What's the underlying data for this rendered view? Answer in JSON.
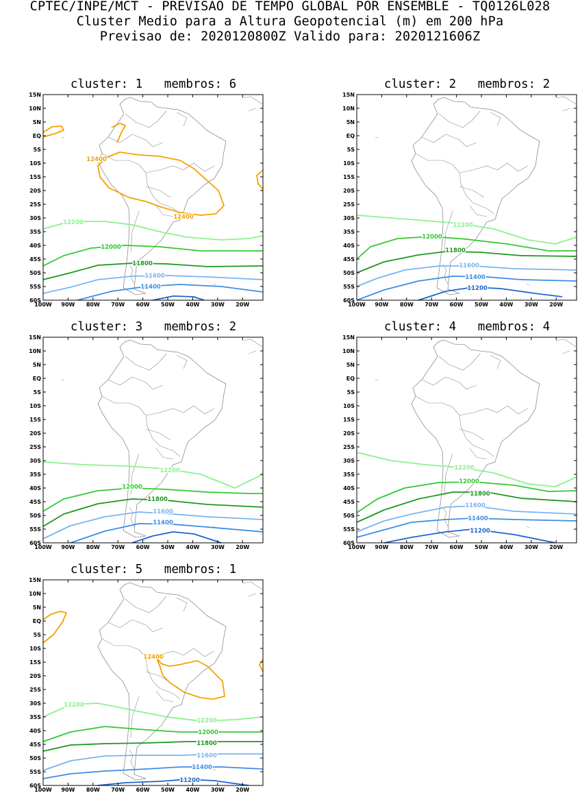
{
  "header": {
    "line1": "CPTEC/INPE/MCT - PREVISAO DE TEMPO GLOBAL POR ENSEMBLE - TQ0126L028",
    "line2": "Cluster Medio para a Altura Geopotencial (m) em 200 hPa",
    "line3": "Previsao de: 2020120800Z    Valido para: 2020121606Z"
  },
  "axes": {
    "lat_labels": [
      "15N",
      "10N",
      "5N",
      "EQ",
      "5S",
      "10S",
      "15S",
      "20S",
      "25S",
      "30S",
      "35S",
      "40S",
      "45S",
      "50S",
      "55S",
      "60S"
    ],
    "lon_labels": [
      "100W",
      "90W",
      "80W",
      "70W",
      "60W",
      "50W",
      "40W",
      "30W",
      "20W"
    ]
  },
  "colors": {
    "c12400": "#f5a000",
    "c12200": "#8cf08c",
    "c12000": "#32c832",
    "c11800": "#1e961e",
    "c11600": "#78b4f0",
    "c11400": "#3c8ce6",
    "c11200": "#1e64c8",
    "coast": "#8c8c8c"
  },
  "panels": [
    {
      "title": "cluster: 1   membros: 6",
      "contours": [
        {
          "value": 12400,
          "label": "12400",
          "label2": "12400"
        },
        {
          "value": 12200,
          "label": "12200"
        },
        {
          "value": 12000,
          "label": "12000"
        },
        {
          "value": 11800,
          "label": "11800"
        },
        {
          "value": 11600,
          "label": "11600"
        },
        {
          "value": 11400,
          "label": "11400"
        }
      ]
    },
    {
      "title": "cluster: 2   membros: 2",
      "contours": [
        {
          "value": 12200,
          "label": "12200"
        },
        {
          "value": 12000,
          "label": "12000"
        },
        {
          "value": 11800,
          "label": "11800"
        },
        {
          "value": 11600,
          "label": "11600"
        },
        {
          "value": 11400,
          "label": "11400"
        },
        {
          "value": 11200,
          "label": "11200"
        }
      ]
    },
    {
      "title": "cluster: 3   membros: 2",
      "contours": [
        {
          "value": 12200,
          "label": "12200"
        },
        {
          "value": 12000,
          "label": "12000"
        },
        {
          "value": 11800,
          "label": "11800"
        },
        {
          "value": 11600,
          "label": "11600"
        },
        {
          "value": 11400,
          "label": "11400"
        }
      ]
    },
    {
      "title": "cluster: 4   membros: 4",
      "contours": [
        {
          "value": 12200,
          "label": "12200"
        },
        {
          "value": 12000,
          "label": "12000"
        },
        {
          "value": 11800,
          "label": "11800"
        },
        {
          "value": 11600,
          "label": "11600"
        },
        {
          "value": 11400,
          "label": "11400"
        },
        {
          "value": 11200,
          "label": "11200"
        }
      ]
    },
    {
      "title": "cluster: 5   membros: 1",
      "contours": [
        {
          "value": 12400,
          "label": "12400"
        },
        {
          "value": 12200,
          "label": "12200",
          "label2": "12200"
        },
        {
          "value": 12000,
          "label": "12000"
        },
        {
          "value": 11800,
          "label": "11800"
        },
        {
          "value": 11600,
          "label": "11600"
        },
        {
          "value": 11400,
          "label": "11400"
        },
        {
          "value": 11200,
          "label": "11200"
        }
      ]
    }
  ]
}
